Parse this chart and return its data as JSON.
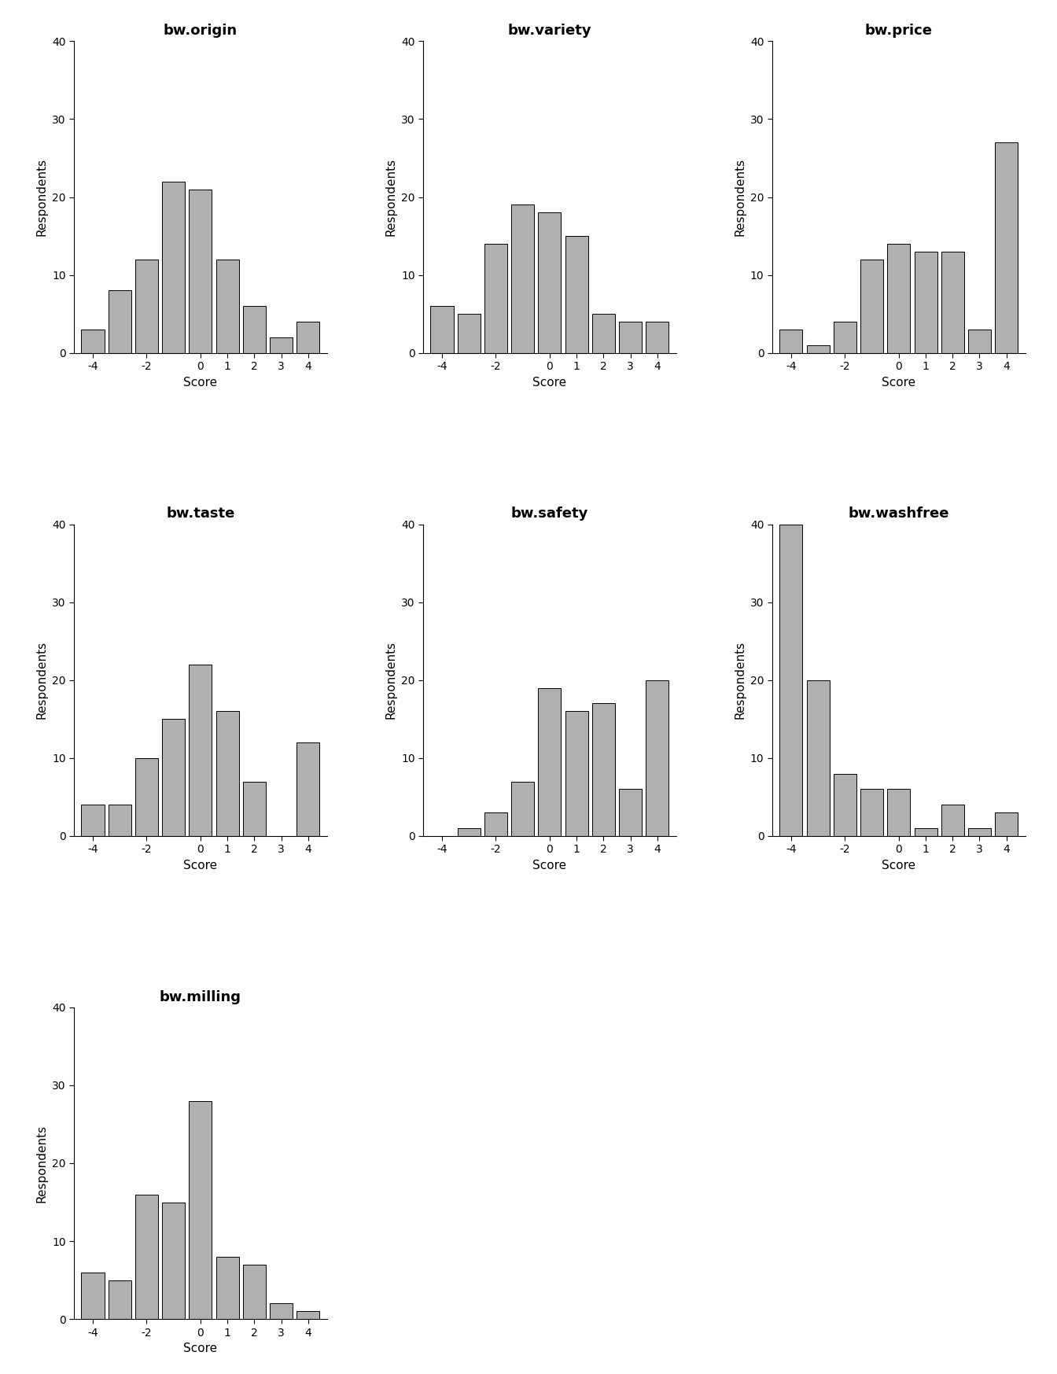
{
  "subplots": [
    {
      "title": "bw.origin",
      "scores": [
        -4,
        -3,
        -2,
        -1,
        0,
        1,
        2,
        3,
        4
      ],
      "values": [
        3,
        8,
        12,
        22,
        21,
        12,
        6,
        2,
        4
      ]
    },
    {
      "title": "bw.variety",
      "scores": [
        -4,
        -3,
        -2,
        -1,
        0,
        1,
        2,
        3,
        4
      ],
      "values": [
        6,
        5,
        14,
        19,
        18,
        15,
        5,
        4,
        4
      ]
    },
    {
      "title": "bw.price",
      "scores": [
        -4,
        -3,
        -2,
        -1,
        0,
        1,
        2,
        3,
        4
      ],
      "values": [
        3,
        1,
        4,
        12,
        14,
        13,
        13,
        3,
        27
      ]
    },
    {
      "title": "bw.taste",
      "scores": [
        -4,
        -3,
        -2,
        -1,
        0,
        1,
        2,
        3,
        4
      ],
      "values": [
        4,
        4,
        10,
        15,
        22,
        16,
        7,
        0,
        12
      ]
    },
    {
      "title": "bw.safety",
      "scores": [
        -4,
        -3,
        -2,
        -1,
        0,
        1,
        2,
        3,
        4
      ],
      "values": [
        0,
        1,
        3,
        7,
        19,
        16,
        17,
        6,
        20
      ]
    },
    {
      "title": "bw.washfree",
      "scores": [
        -4,
        -3,
        -2,
        -1,
        0,
        1,
        2,
        3,
        4
      ],
      "values": [
        40,
        20,
        8,
        6,
        6,
        1,
        4,
        1,
        3
      ]
    },
    {
      "title": "bw.milling",
      "scores": [
        -4,
        -3,
        -2,
        -1,
        0,
        1,
        2,
        3,
        4
      ],
      "values": [
        6,
        5,
        16,
        15,
        28,
        8,
        7,
        2,
        1
      ]
    }
  ],
  "bar_color": "#b0b0b0",
  "bar_edgecolor": "#000000",
  "ylabel": "Respondents",
  "xlabel": "Score",
  "ylim": [
    0,
    40
  ],
  "yticks": [
    0,
    10,
    20,
    30,
    40
  ],
  "xticks": [
    -4,
    -2,
    0,
    1,
    2,
    3,
    4
  ],
  "background_color": "#ffffff",
  "title_fontsize": 13,
  "label_fontsize": 11,
  "tick_fontsize": 10,
  "bar_width": 0.85,
  "nrows": 3,
  "ncols": 3
}
